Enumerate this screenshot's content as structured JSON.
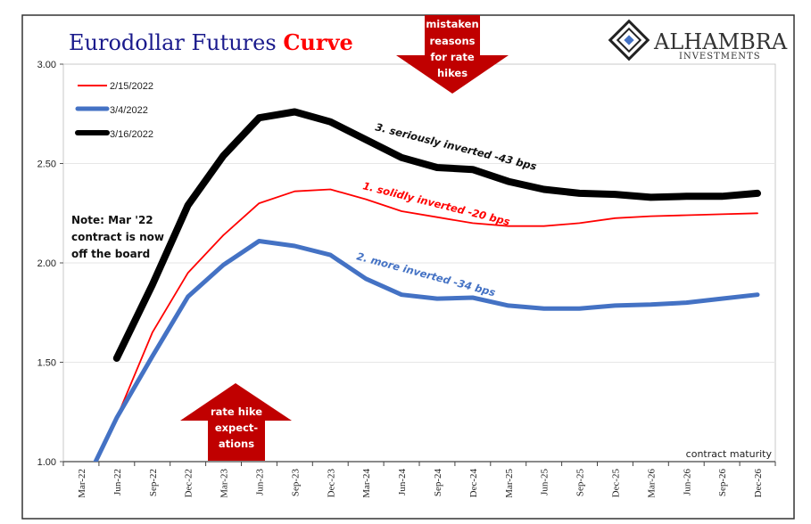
{
  "chart_data": {
    "type": "line",
    "title": {
      "part1": "Eurodollar Futures ",
      "part2": "Curve"
    },
    "xlabel": "contract maturity",
    "ylabel": "",
    "ylim": [
      1.0,
      3.0
    ],
    "yticks": [
      "1.00",
      "1.50",
      "2.00",
      "2.50",
      "3.00"
    ],
    "grid": true,
    "legend_position": "top-left",
    "categories": [
      "Mar-22",
      "Jun-22",
      "Sep-22",
      "Dec-22",
      "Mar-23",
      "Jun-23",
      "Sep-23",
      "Dec-23",
      "Mar-24",
      "Jun-24",
      "Sep-24",
      "Dec-24",
      "Mar-25",
      "Jun-25",
      "Sep-25",
      "Dec-25",
      "Mar-26",
      "Jun-26",
      "Sep-26",
      "Dec-26"
    ],
    "series": [
      {
        "name": "2/15/2022",
        "color": "#ff0000",
        "values": [
          0.85,
          1.22,
          1.65,
          1.95,
          2.14,
          2.3,
          2.36,
          2.37,
          2.32,
          2.26,
          2.23,
          2.2,
          2.185,
          2.185,
          2.2,
          2.225,
          2.235,
          2.24,
          2.245,
          2.25
        ]
      },
      {
        "name": "3/4/2022",
        "color": "#4472c4",
        "values": [
          0.85,
          1.22,
          1.53,
          1.83,
          1.99,
          2.11,
          2.085,
          2.04,
          1.92,
          1.84,
          1.82,
          1.825,
          1.785,
          1.77,
          1.77,
          1.785,
          1.79,
          1.8,
          1.82,
          1.84
        ]
      },
      {
        "name": "3/16/2022",
        "color": "#000000",
        "values": [
          null,
          1.52,
          1.89,
          2.29,
          2.54,
          2.73,
          2.76,
          2.71,
          2.62,
          2.53,
          2.48,
          2.47,
          2.41,
          2.37,
          2.35,
          2.345,
          2.33,
          2.335,
          2.335,
          2.35
        ]
      }
    ],
    "annotations": {
      "black": "3. seriously inverted -43 bps",
      "red": "1. solidly inverted -20 bps",
      "blue": "2. more inverted -34 bps",
      "note": [
        "Note: Mar '22",
        "contract is now",
        "off the board"
      ],
      "down_arrow": [
        "mistaken",
        "reasons",
        "for rate",
        "hikes"
      ],
      "up_arrow": [
        "rate hike",
        "expect-",
        "ations"
      ]
    }
  },
  "logo": {
    "name": "ALHAMBRA",
    "sub": "INVESTMENTS"
  }
}
